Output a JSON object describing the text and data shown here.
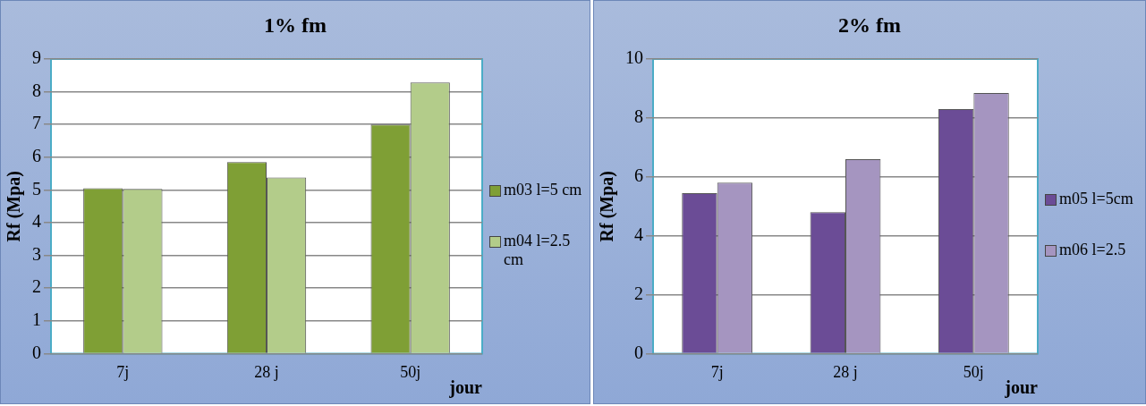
{
  "chart_data": [
    {
      "type": "bar",
      "title": "1% fm",
      "xlabel": "jour",
      "ylabel": "Rf (Mpa)",
      "categories": [
        "7j",
        "28 j",
        "50j"
      ],
      "series": [
        {
          "name": "m03 l=5 cm",
          "color": "#7f9f35",
          "values": [
            5.05,
            5.85,
            7.0
          ]
        },
        {
          "name": "m04 l=2.5 cm",
          "color": "#b3cc8a",
          "values": [
            5.03,
            5.38,
            8.28
          ]
        }
      ],
      "ylim": [
        0,
        9
      ],
      "yticks": [
        0,
        1,
        2,
        3,
        4,
        5,
        6,
        7,
        8,
        9
      ],
      "grid": "y",
      "legend": "right"
    },
    {
      "type": "bar",
      "title": "2% fm",
      "xlabel": "jour",
      "ylabel": "Rf (Mpa)",
      "categories": [
        "7j",
        "28 j",
        "50j"
      ],
      "series": [
        {
          "name": "m05 l=5cm",
          "color": "#6b4c96",
          "values": [
            5.45,
            4.8,
            8.3
          ]
        },
        {
          "name": "m06 l=2.5",
          "color": "#a595c0",
          "values": [
            5.8,
            6.6,
            8.85
          ]
        }
      ],
      "ylim": [
        0,
        10
      ],
      "yticks": [
        0,
        2,
        4,
        6,
        8,
        10
      ],
      "grid": "y",
      "legend": "right"
    }
  ]
}
